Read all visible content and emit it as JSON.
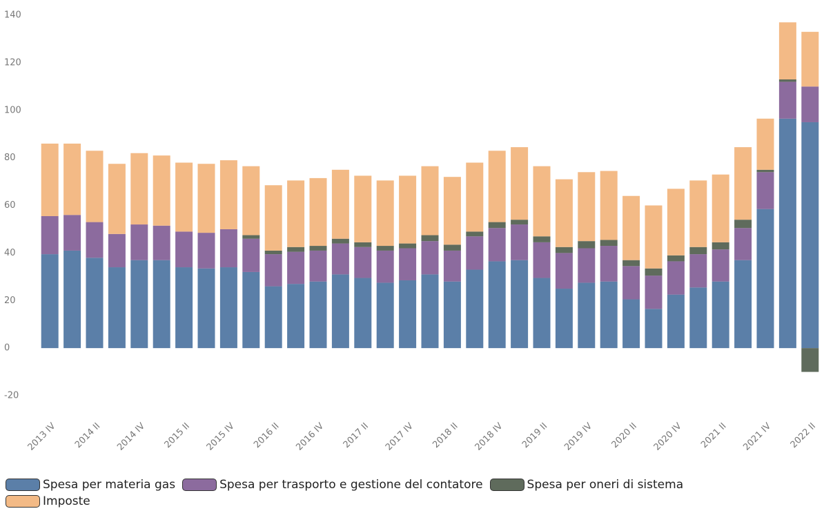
{
  "chart_data": {
    "type": "stacked-bar",
    "categories": [
      "2013 IV",
      null,
      "2014 II",
      null,
      "2014 IV",
      null,
      "2015 II",
      null,
      "2015 IV",
      null,
      "2016 II",
      null,
      "2016 IV",
      null,
      "2017 II",
      null,
      "2017 IV",
      null,
      "2018 II",
      null,
      "2018 IV",
      null,
      "2019 II",
      null,
      "2019 IV",
      null,
      "2020 II",
      null,
      "2020 IV",
      null,
      "2021 II",
      null,
      "2021 IV",
      null,
      "2022 II"
    ],
    "series": [
      {
        "name": "Spesa per materia gas",
        "color": "#5b7fa8",
        "values": [
          39.5,
          41,
          38,
          34,
          37,
          37,
          34,
          33.5,
          34,
          32,
          26,
          27,
          28,
          31,
          29.5,
          27.5,
          28.5,
          31,
          28,
          33,
          36.5,
          37,
          29.5,
          25,
          27.5,
          28,
          20.5,
          16.5,
          22.5,
          25.5,
          28,
          37,
          58.5,
          96.5,
          95
        ]
      },
      {
        "name": "Spesa per trasporto e gestione del contatore",
        "color": "#8c6b9e",
        "values": [
          16,
          15,
          15,
          14,
          15,
          14.5,
          15,
          15,
          16,
          14,
          13.5,
          13.5,
          13,
          13,
          13,
          13.5,
          13.5,
          14,
          13,
          14,
          14,
          15,
          15,
          15,
          14.5,
          15,
          14,
          14,
          14,
          14,
          13.5,
          13.5,
          15.5,
          15.5,
          15
        ]
      },
      {
        "name": "Spesa per oneri di sistema",
        "color": "#5f6b5c",
        "values": [
          0,
          0,
          0,
          0,
          0,
          0,
          0,
          0,
          0,
          1.5,
          1.5,
          2,
          2,
          2,
          2,
          2,
          2,
          2.5,
          2.5,
          2,
          2.5,
          2,
          2.5,
          2.5,
          3,
          2.5,
          2.5,
          3,
          2.5,
          3,
          3,
          3.5,
          1,
          1,
          -10
        ]
      },
      {
        "name": "Imposte",
        "color": "#f3ba86",
        "values": [
          30.5,
          30,
          30,
          29.5,
          30,
          29.5,
          29,
          29,
          29,
          29,
          27.5,
          28,
          28.5,
          29,
          28,
          27.5,
          28.5,
          29,
          28.5,
          29,
          30,
          30.5,
          29.5,
          28.5,
          29,
          29,
          27,
          26.5,
          28,
          28,
          28.5,
          30.5,
          21.5,
          24,
          23
        ]
      }
    ],
    "ylim": [
      -20,
      140
    ],
    "yticks": [
      -20,
      0,
      20,
      40,
      60,
      80,
      100,
      120,
      140
    ],
    "grid": false
  }
}
